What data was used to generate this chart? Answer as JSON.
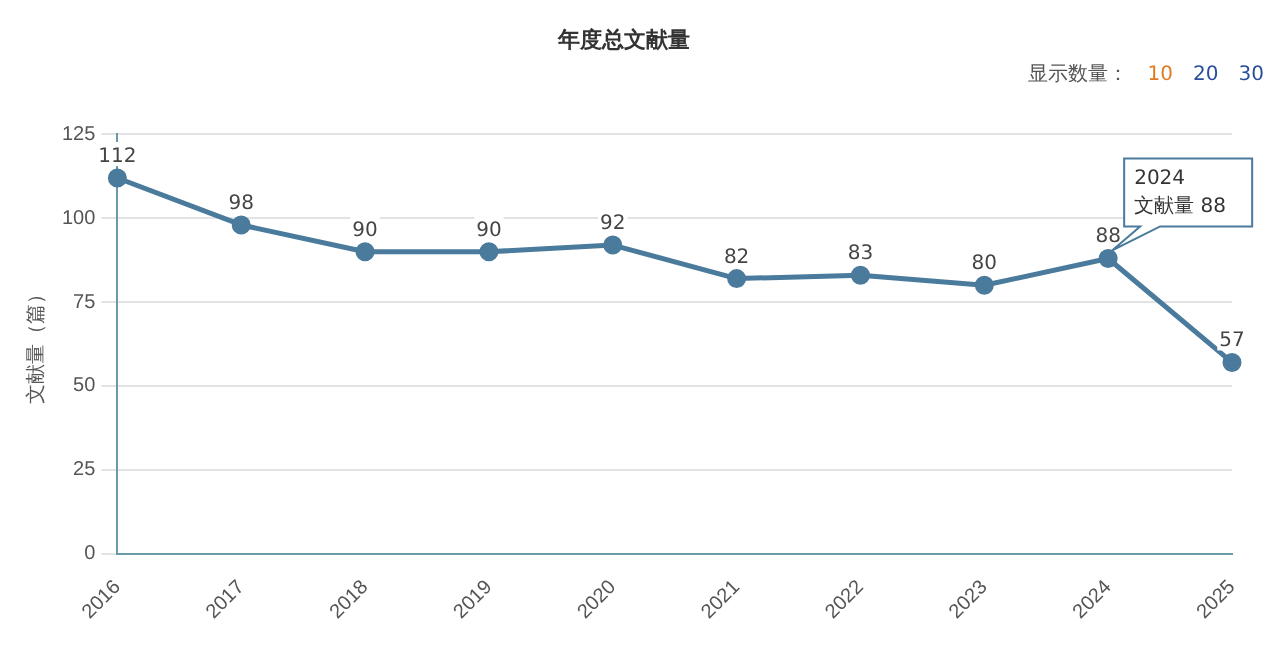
{
  "chart_data": {
    "type": "line",
    "title": "年度总文献量",
    "ylabel": "文献量（篇）",
    "categories": [
      "2016",
      "2017",
      "2018",
      "2019",
      "2020",
      "2021",
      "2022",
      "2023",
      "2024",
      "2025"
    ],
    "series": [
      {
        "color": "#4a7a9c",
        "values": [
          112,
          98,
          90,
          90,
          92,
          82,
          83,
          80,
          88,
          57
        ]
      }
    ],
    "ylim": [
      0,
      125
    ],
    "yticks": [
      0,
      25,
      50,
      75,
      100,
      125
    ],
    "grid": "y",
    "marker": "circle",
    "line_style": "solid",
    "legend": false,
    "data_labels": true,
    "annotations": [
      {
        "text": "2024 文献量 88",
        "x": "2024",
        "y": 88
      },
      "显示数量： 10 20 30"
    ]
  }
}
